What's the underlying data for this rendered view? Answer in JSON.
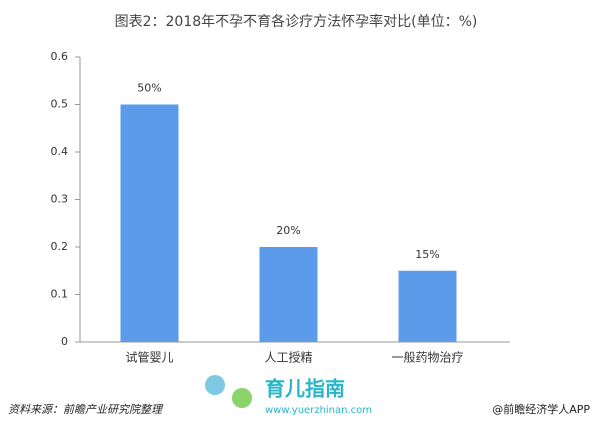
{
  "chart_data": {
    "type": "bar",
    "title": "图表2：2018年不孕不育各诊疗方法怀孕率对比(单位：%)",
    "categories": [
      "试管婴儿",
      "人工授精",
      "一般药物治疗"
    ],
    "values": [
      0.5,
      0.2,
      0.15
    ],
    "value_labels": [
      "50%",
      "20%",
      "15%"
    ],
    "color": "#5b9bea",
    "ylim": [
      0,
      0.6
    ],
    "yticks": [
      0,
      0.1,
      0.2,
      0.3,
      0.4,
      0.5,
      0.6
    ],
    "grid": false
  },
  "footer": {
    "source": "资料来源：前瞻产业研究院整理",
    "credit": "@前瞻经济学人APP"
  },
  "watermark": {
    "name": "育儿指南",
    "url": "www.yuerzhinan.com"
  }
}
